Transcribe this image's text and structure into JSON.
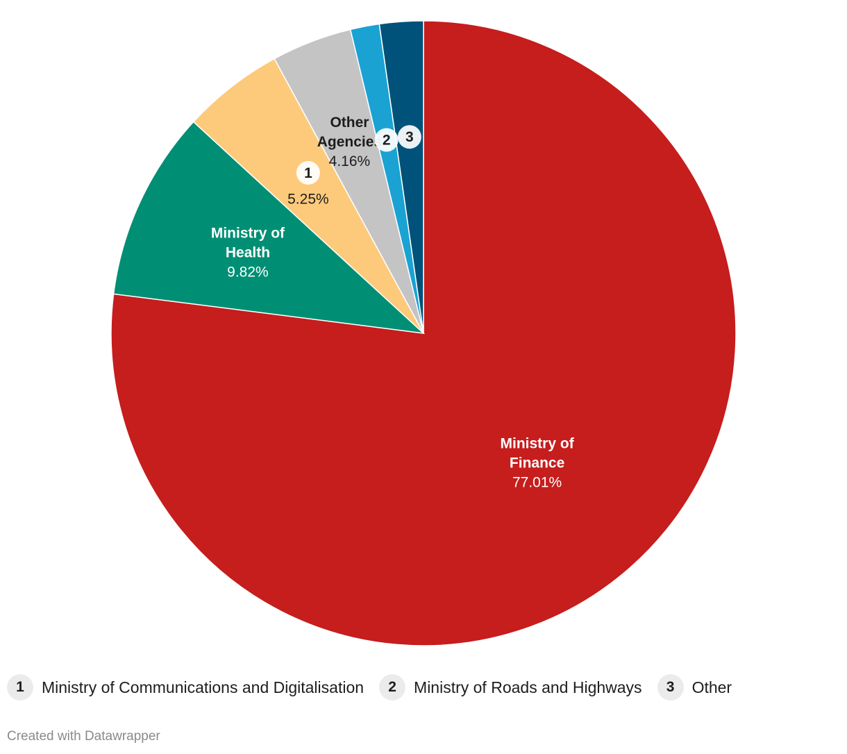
{
  "chart_data": {
    "type": "pie",
    "slices": [
      {
        "name": "Ministry of Finance",
        "label_lines": [
          "Ministry of",
          "Finance"
        ],
        "value": 77.01,
        "value_text": "77.01%",
        "color": "#c61d1d",
        "text_color": "#ffffff"
      },
      {
        "name": "Ministry of Health",
        "label_lines": [
          "Ministry of",
          "Health"
        ],
        "value": 9.82,
        "value_text": "9.82%",
        "color": "#008f74",
        "text_color": "#ffffff"
      },
      {
        "name": "Ministry of Communications and Digitalisation",
        "label_lines": [],
        "badge": "1",
        "value": 5.25,
        "value_text": "5.25%",
        "color": "#fdca7b",
        "text_color": "#1d1d1d"
      },
      {
        "name": "Other Agencies",
        "label_lines": [
          "Other",
          "Agencies"
        ],
        "value": 4.16,
        "value_text": "4.16%",
        "color": "#c4c4c4",
        "text_color": "#1d1d1d"
      },
      {
        "name": "Ministry of Roads and Highways",
        "label_lines": [],
        "badge": "2",
        "value": 1.5,
        "value_text": "",
        "color": "#1aa2d3",
        "text_color": "#1d1d1d"
      },
      {
        "name": "Other",
        "label_lines": [],
        "badge": "3",
        "value": 2.26,
        "value_text": "",
        "color": "#00527a",
        "text_color": "#1d1d1d"
      }
    ]
  },
  "legend": [
    {
      "badge": "1",
      "label": "Ministry of Communications and Digitalisation"
    },
    {
      "badge": "2",
      "label": "Ministry of Roads and Highways"
    },
    {
      "badge": "3",
      "label": "Other"
    }
  ],
  "credit": "Created with Datawrapper"
}
